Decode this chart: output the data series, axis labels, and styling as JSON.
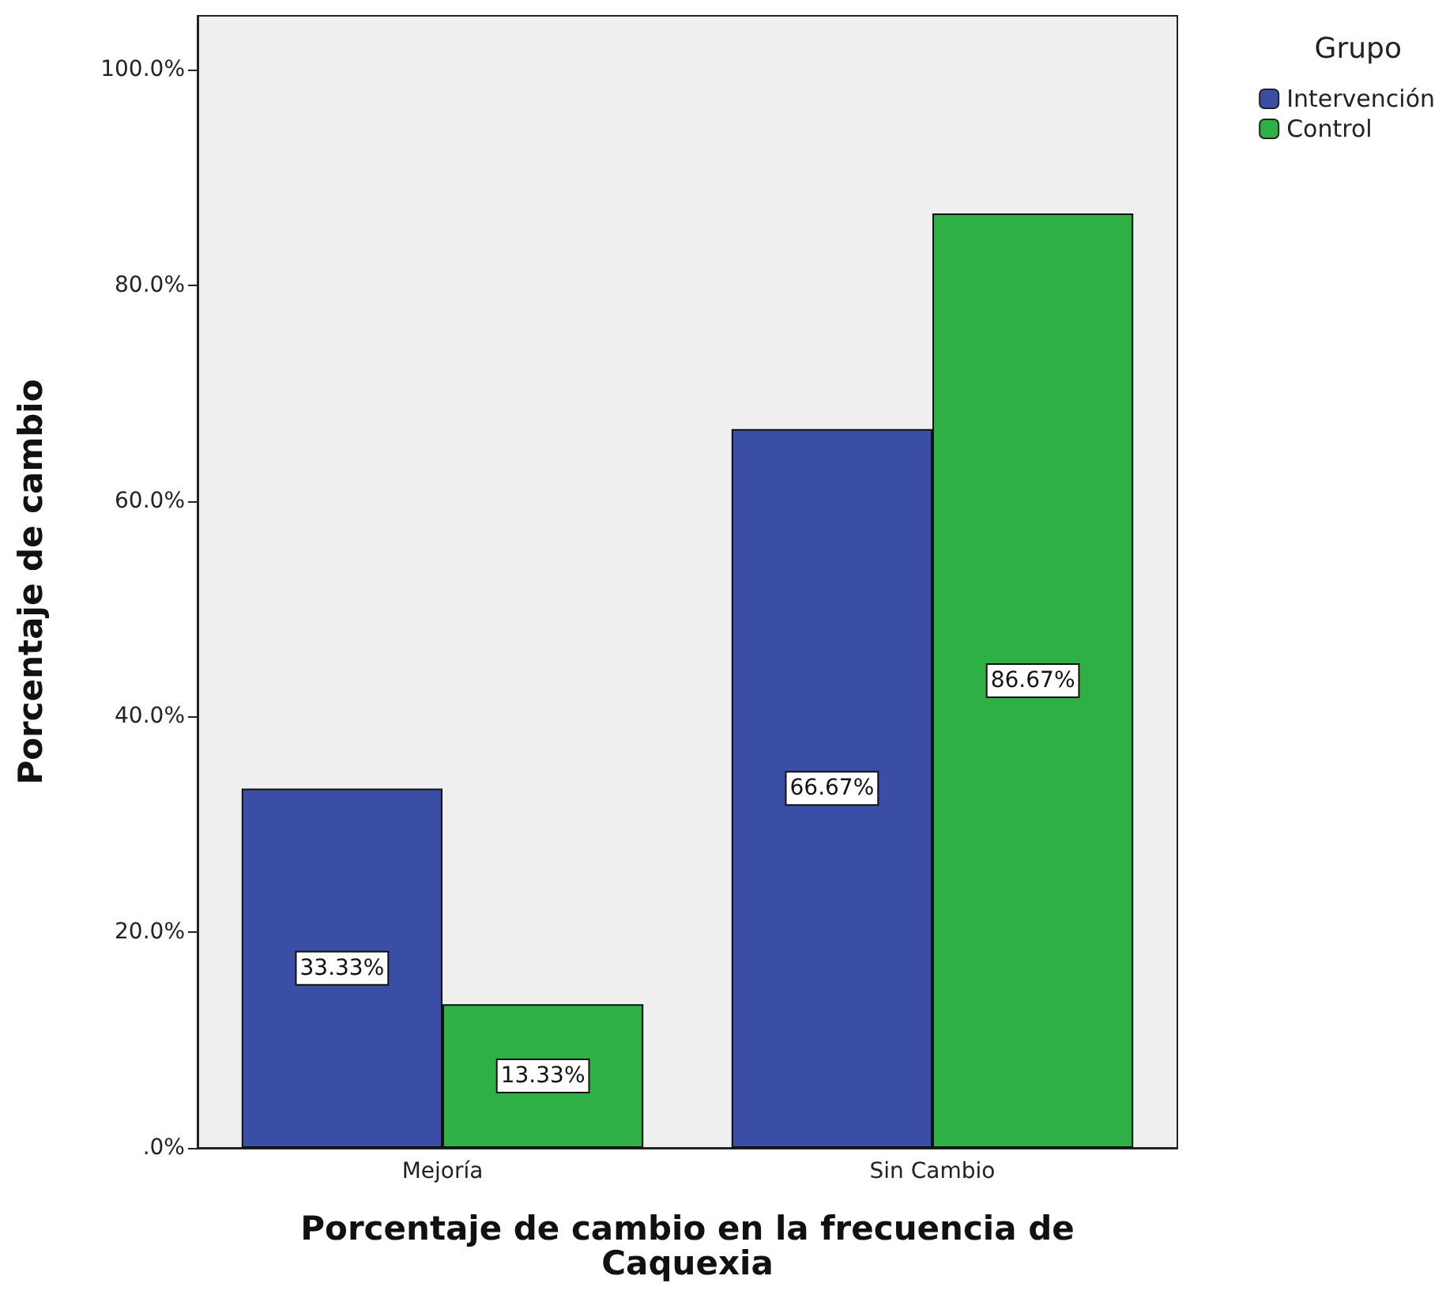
{
  "chart_data": {
    "type": "bar",
    "xlabel": "Porcentaje de cambio en la frecuencia de\nCaquexia",
    "ylabel": "Porcentaje de cambio",
    "legend_title": "Grupo",
    "categories": [
      "Mejoría",
      "Sin Cambio"
    ],
    "series": [
      {
        "name": "Intervención",
        "color": "#3a4ea6",
        "values": [
          33.33,
          66.67
        ],
        "value_labels": [
          "33.33%",
          "66.67%"
        ]
      },
      {
        "name": "Control",
        "color": "#2fb044",
        "values": [
          13.33,
          86.67
        ],
        "value_labels": [
          "13.33%",
          "86.67%"
        ]
      }
    ],
    "ylim": [
      0,
      105
    ],
    "yticks": [
      {
        "value": 0,
        "label": ".0%"
      },
      {
        "value": 20,
        "label": "20.0%"
      },
      {
        "value": 40,
        "label": "40.0%"
      },
      {
        "value": 60,
        "label": "60.0%"
      },
      {
        "value": 80,
        "label": "80.0%"
      },
      {
        "value": 100,
        "label": "100.0%"
      }
    ],
    "grid": false,
    "legend": "top right"
  }
}
